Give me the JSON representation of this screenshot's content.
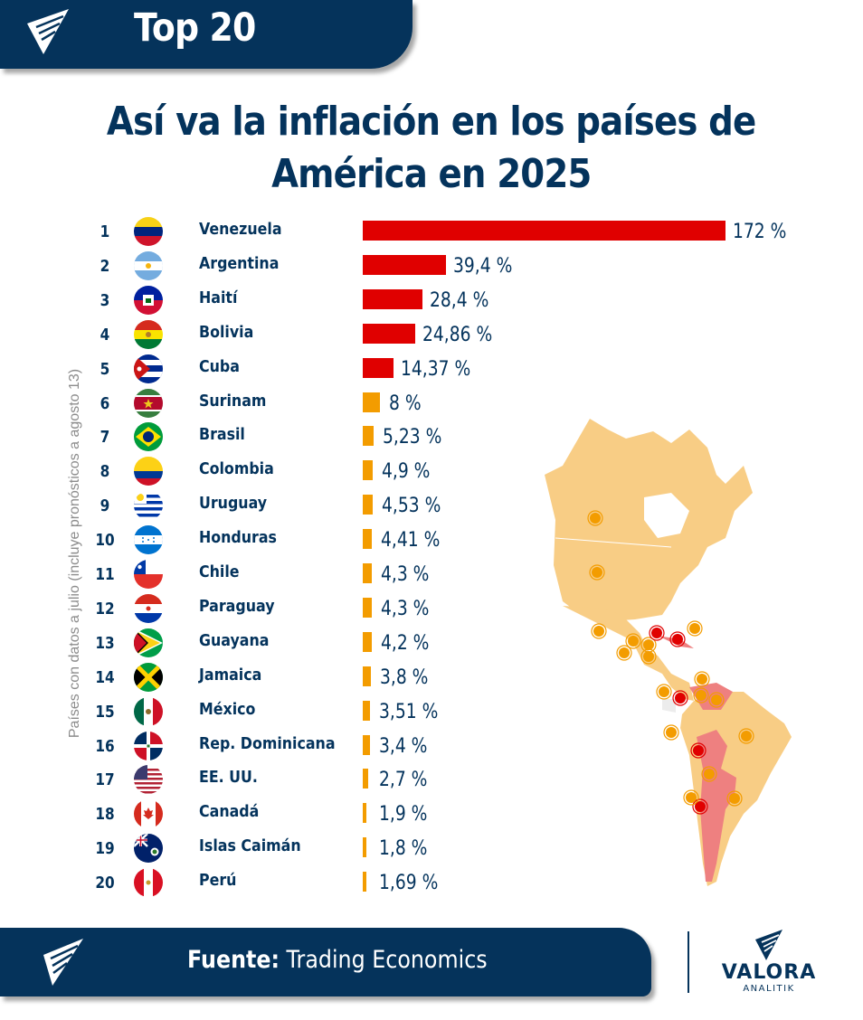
{
  "header": {
    "badge": "Top 20",
    "title_line1": "Así va la inflación en los países de",
    "title_line2": "América en 2025",
    "side_note": "Países con datos a julio (incluye pronósticos a agosto 13)"
  },
  "colors": {
    "navy": "#05335b",
    "high": "#e00000",
    "low": "#f39c00",
    "map_base": "#f8cd85",
    "map_high": "#ee8080"
  },
  "chart_data": {
    "type": "bar",
    "orientation": "horizontal",
    "title": "Así va la inflación en los países de América en 2025",
    "xlabel": "",
    "ylabel": "",
    "unit": "%",
    "xlim": [
      0,
      172
    ],
    "grid": false,
    "categories": [
      "Venezuela",
      "Argentina",
      "Haití",
      "Bolivia",
      "Cuba",
      "Surinam",
      "Brasil",
      "Colombia",
      "Uruguay",
      "Honduras",
      "Chile",
      "Paraguay",
      "Guayana",
      "Jamaica",
      "México",
      "Rep. Dominicana",
      "EE. UU.",
      "Canadá",
      "Islas Caimán",
      "Perú"
    ],
    "values": [
      172,
      39.4,
      28.4,
      24.86,
      14.37,
      8,
      5.23,
      4.9,
      4.53,
      4.41,
      4.3,
      4.3,
      4.2,
      3.8,
      3.51,
      3.4,
      2.7,
      1.9,
      1.8,
      1.69
    ],
    "labels": [
      "172 %",
      "39,4 %",
      "28,4 %",
      "24,86 %",
      "14,37 %",
      "8 %",
      "5,23 %",
      "4,9 %",
      "4,53 %",
      "4,41 %",
      "4,3 %",
      "4,3 %",
      "4,2 %",
      "3,8 %",
      "3,51 %",
      "3,4 %",
      "2,7 %",
      "1,9 %",
      "1,8 %",
      "1,69 %"
    ],
    "ranks": [
      "1",
      "2",
      "3",
      "4",
      "5",
      "6",
      "7",
      "8",
      "9",
      "10",
      "11",
      "12",
      "13",
      "14",
      "15",
      "16",
      "17",
      "18",
      "19",
      "20"
    ],
    "flags": [
      "venezuela-flag",
      "argentina-flag",
      "haiti-flag",
      "bolivia-flag",
      "cuba-flag",
      "suriname-flag",
      "brazil-flag",
      "colombia-flag",
      "uruguay-flag",
      "honduras-flag",
      "chile-flag",
      "paraguay-flag",
      "guyana-flag",
      "jamaica-flag",
      "mexico-flag",
      "dominican-republic-flag",
      "usa-flag",
      "canada-flag",
      "cayman-islands-flag",
      "peru-flag"
    ],
    "highlight_threshold": 10
  },
  "map": {
    "label": "map-of-the-americas",
    "high_inflation_markers": [
      "Venezuela",
      "Argentina",
      "Haití",
      "Bolivia",
      "Cuba"
    ]
  },
  "footer": {
    "source_label": "Fuente:",
    "source_value": " Trading Economics",
    "brand_name": "VALORA",
    "brand_sub": "ANALITIK"
  }
}
